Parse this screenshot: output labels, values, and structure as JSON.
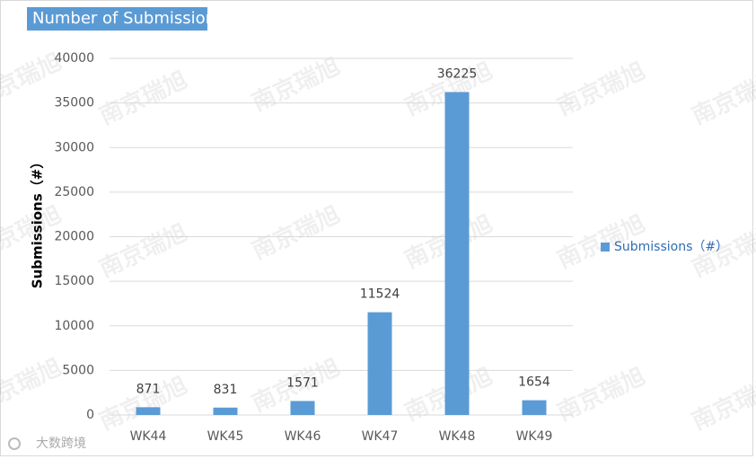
{
  "chart_data": {
    "type": "bar",
    "title": "Number of Submissions",
    "y_label": "Submissions（#）",
    "categories": [
      "WK44",
      "WK45",
      "WK46",
      "WK47",
      "WK48",
      "WK49"
    ],
    "series": [
      {
        "name": "Submissions（#）",
        "color": "#5b9bd5",
        "values": [
          871,
          831,
          1571,
          11524,
          36225,
          1654
        ]
      }
    ],
    "ylim": [
      0,
      40000
    ],
    "yticks": [
      0,
      5000,
      10000,
      15000,
      20000,
      25000,
      30000,
      35000,
      40000
    ],
    "grid": true,
    "legend": "right",
    "data_labels": true,
    "watermark": "南京瑞旭",
    "logo_text": "大数跨境"
  }
}
